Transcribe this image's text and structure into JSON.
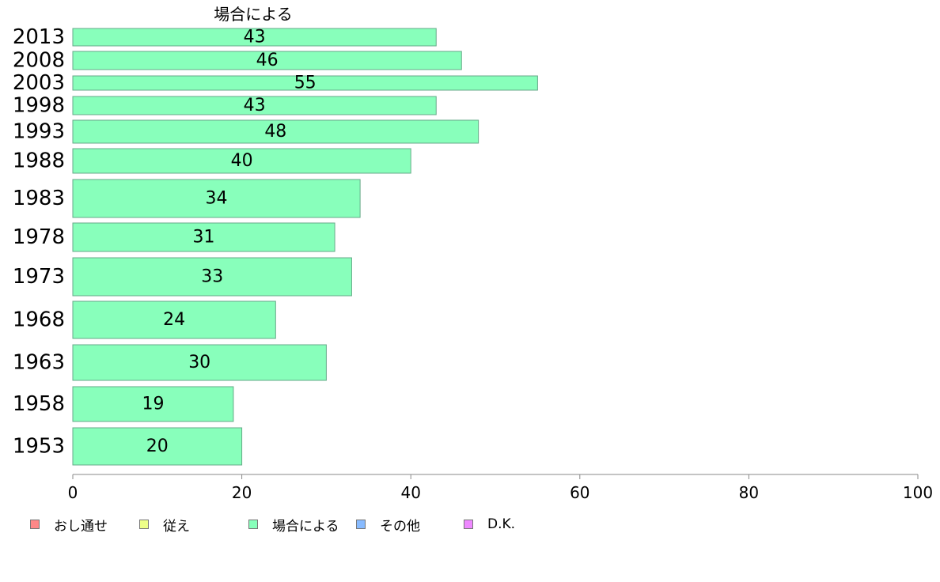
{
  "chart_data": {
    "type": "bar",
    "orientation": "horizontal",
    "title": "場合による",
    "categories": [
      "2013",
      "2008",
      "2003",
      "1998",
      "1993",
      "1988",
      "1983",
      "1978",
      "1973",
      "1968",
      "1963",
      "1958",
      "1953"
    ],
    "series": [
      {
        "name": "場合による",
        "color": "#88ffbb",
        "values": [
          43,
          46,
          55,
          43,
          48,
          40,
          34,
          31,
          33,
          24,
          30,
          19,
          20
        ]
      }
    ],
    "xlim": [
      0,
      100
    ],
    "xticks": [
      0,
      20,
      40,
      60,
      80,
      100
    ],
    "grid": false,
    "legend_position": "bottom-left"
  },
  "legend": [
    {
      "label": "おし通せ",
      "color": "#ff8888"
    },
    {
      "label": "従え",
      "color": "#eeff88"
    },
    {
      "label": "場合による",
      "color": "#88ffbb"
    },
    {
      "label": "その他",
      "color": "#88bbff"
    },
    {
      "label": "D.K.",
      "color": "#ee88ff"
    }
  ]
}
